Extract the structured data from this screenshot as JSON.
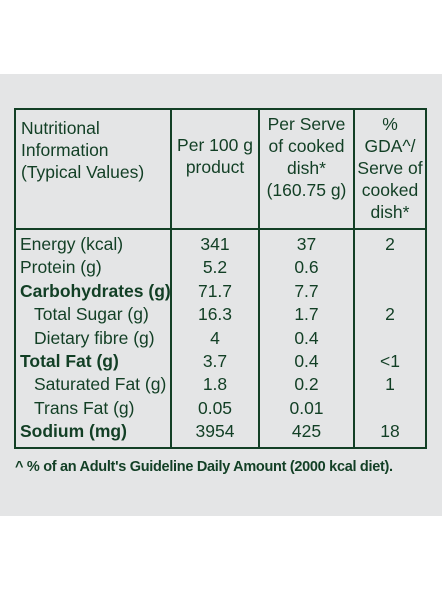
{
  "header": {
    "info": [
      "Nutritional",
      "Information",
      "(Typical Values)"
    ],
    "per100": [
      "Per 100 g",
      "product"
    ],
    "perServe": [
      "Per Serve",
      "of cooked",
      "dish*",
      "(160.75 g)"
    ],
    "gda": [
      "% GDA^/",
      "Serve of",
      "cooked",
      "dish*"
    ]
  },
  "rows": [
    {
      "label": "Energy (kcal)",
      "per100": "341",
      "perServe": "37",
      "gda": "2"
    },
    {
      "label": "Protein (g)",
      "per100": "5.2",
      "perServe": "0.6",
      "gda": ""
    },
    {
      "label": "Carbohydrates (g)",
      "per100": "71.7",
      "perServe": "7.7",
      "gda": ""
    },
    {
      "label": "Total Sugar (g)",
      "per100": "16.3",
      "perServe": "1.7",
      "gda": "2"
    },
    {
      "label": "Dietary fibre (g)",
      "per100": "4",
      "perServe": "0.4",
      "gda": ""
    },
    {
      "label": "Total Fat (g)",
      "per100": "3.7",
      "perServe": "0.4",
      "gda": "<1"
    },
    {
      "label": "Saturated Fat (g)",
      "per100": "1.8",
      "perServe": "0.2",
      "gda": "1"
    },
    {
      "label": "Trans Fat (g)",
      "per100": "0.05",
      "perServe": "0.01",
      "gda": ""
    },
    {
      "label": "Sodium (mg)",
      "per100": "3954",
      "perServe": "425",
      "gda": "18"
    }
  ],
  "footnote": "^ % of an Adult's Guideline Daily Amount (2000 kcal diet).",
  "colors": {
    "text": "#123f25",
    "panel": "#e4e5e6",
    "page": "#ffffff"
  }
}
